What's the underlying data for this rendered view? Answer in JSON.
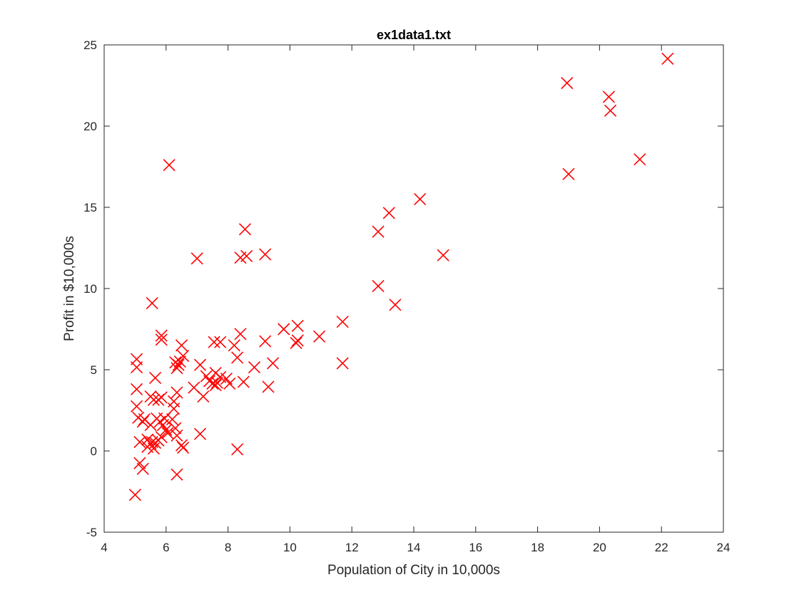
{
  "chart_data": {
    "type": "scatter",
    "title": "ex1data1.txt",
    "xlabel": "Population of City in 10,000s",
    "ylabel": "Profit in $10,000s",
    "xlim": [
      4,
      24
    ],
    "ylim": [
      -5,
      25
    ],
    "xticks": [
      "4",
      "6",
      "8",
      "10",
      "12",
      "14",
      "16",
      "18",
      "20",
      "22",
      "24"
    ],
    "yticks": [
      "-5",
      "0",
      "5",
      "10",
      "15",
      "20",
      "25"
    ],
    "grid": false,
    "marker": "x",
    "marker_color": "#ff0000",
    "axis_color": "#262626",
    "series": [
      {
        "points": [
          [
            22.2,
            24.15
          ],
          [
            18.95,
            22.65
          ],
          [
            20.3,
            21.8
          ],
          [
            20.35,
            20.95
          ],
          [
            21.3,
            17.95
          ],
          [
            19.0,
            17.05
          ],
          [
            6.1,
            17.6
          ],
          [
            14.2,
            15.5
          ],
          [
            13.2,
            14.65
          ],
          [
            12.85,
            13.5
          ],
          [
            14.95,
            12.05
          ],
          [
            8.55,
            13.65
          ],
          [
            8.4,
            11.9
          ],
          [
            8.6,
            12.0
          ],
          [
            9.2,
            12.1
          ],
          [
            7.0,
            11.85
          ],
          [
            12.85,
            10.15
          ],
          [
            13.4,
            9.0
          ],
          [
            5.55,
            9.1
          ],
          [
            11.7,
            7.95
          ],
          [
            9.8,
            7.5
          ],
          [
            10.25,
            7.7
          ],
          [
            10.95,
            7.05
          ],
          [
            10.2,
            6.65
          ],
          [
            10.25,
            6.8
          ],
          [
            5.85,
            7.1
          ],
          [
            5.85,
            6.85
          ],
          [
            6.5,
            6.5
          ],
          [
            7.55,
            6.7
          ],
          [
            7.75,
            6.7
          ],
          [
            8.4,
            7.2
          ],
          [
            9.2,
            6.75
          ],
          [
            8.2,
            6.5
          ],
          [
            8.3,
            5.75
          ],
          [
            8.85,
            5.15
          ],
          [
            9.45,
            5.4
          ],
          [
            11.7,
            5.4
          ],
          [
            5.05,
            5.65
          ],
          [
            5.05,
            5.15
          ],
          [
            6.3,
            5.45
          ],
          [
            6.4,
            5.3
          ],
          [
            6.45,
            5.5
          ],
          [
            6.55,
            5.85
          ],
          [
            7.1,
            5.3
          ],
          [
            6.35,
            5.1
          ],
          [
            7.3,
            4.6
          ],
          [
            7.6,
            4.8
          ],
          [
            7.75,
            4.55
          ],
          [
            7.95,
            4.45
          ],
          [
            8.05,
            4.15
          ],
          [
            8.5,
            4.25
          ],
          [
            7.4,
            4.3
          ],
          [
            7.5,
            4.15
          ],
          [
            7.6,
            4.05
          ],
          [
            7.65,
            4.2
          ],
          [
            9.3,
            3.95
          ],
          [
            6.9,
            3.9
          ],
          [
            7.2,
            3.35
          ],
          [
            5.65,
            4.5
          ],
          [
            5.05,
            3.8
          ],
          [
            5.5,
            3.35
          ],
          [
            5.6,
            3.15
          ],
          [
            5.75,
            3.15
          ],
          [
            5.85,
            3.3
          ],
          [
            6.25,
            3.05
          ],
          [
            6.35,
            3.6
          ],
          [
            6.25,
            2.6
          ],
          [
            5.05,
            2.75
          ],
          [
            5.1,
            2.05
          ],
          [
            5.3,
            1.95
          ],
          [
            5.7,
            2.0
          ],
          [
            5.8,
            1.8
          ],
          [
            5.9,
            1.6
          ],
          [
            5.95,
            2.0
          ],
          [
            6.2,
            1.95
          ],
          [
            5.25,
            1.8
          ],
          [
            5.5,
            1.6
          ],
          [
            6.0,
            1.3
          ],
          [
            6.3,
            1.4
          ],
          [
            7.1,
            1.05
          ],
          [
            5.15,
            0.55
          ],
          [
            5.4,
            0.7
          ],
          [
            5.55,
            0.55
          ],
          [
            5.65,
            0.5
          ],
          [
            5.75,
            0.65
          ],
          [
            5.85,
            0.85
          ],
          [
            6.05,
            1.1
          ],
          [
            6.35,
            0.95
          ],
          [
            6.5,
            0.35
          ],
          [
            6.55,
            0.2
          ],
          [
            5.4,
            0.25
          ],
          [
            5.6,
            0.15
          ],
          [
            5.5,
            0.45
          ],
          [
            8.3,
            0.1
          ],
          [
            5.15,
            -0.75
          ],
          [
            5.25,
            -1.1
          ],
          [
            6.35,
            -1.45
          ],
          [
            5.0,
            -2.7
          ]
        ]
      }
    ]
  }
}
